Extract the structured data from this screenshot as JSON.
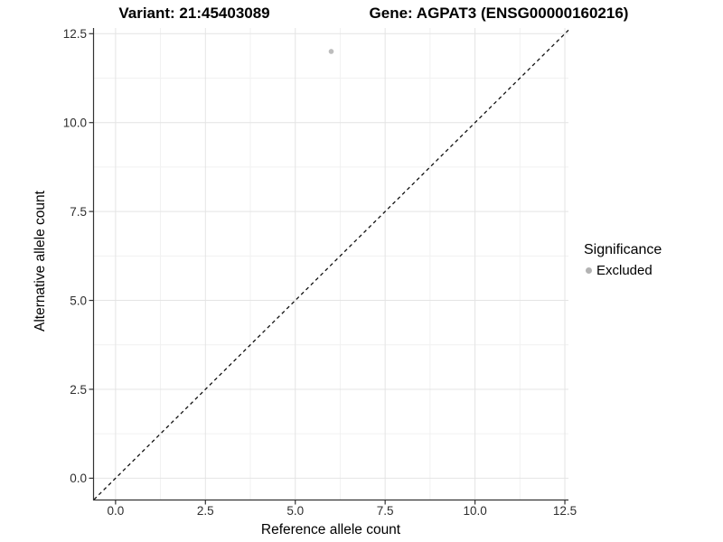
{
  "chart_data": {
    "type": "scatter",
    "titles": [
      {
        "id": "variant",
        "text": "Variant: 21:45403089"
      },
      {
        "id": "gene",
        "text": "Gene: AGPAT3 (ENSG00000160216)"
      }
    ],
    "xlabel": "Reference allele count",
    "ylabel": "Alternative allele count",
    "xlim": [
      -0.6,
      12.6
    ],
    "ylim": [
      -0.6,
      12.66
    ],
    "x_ticks": {
      "values": [
        0,
        2.5,
        5,
        7.5,
        10,
        12.5
      ],
      "labels": [
        "0.0",
        "2.5",
        "5.0",
        "7.5",
        "10.0",
        "12.5"
      ]
    },
    "y_ticks": {
      "values": [
        0,
        2.5,
        5,
        7.5,
        10,
        12.5
      ],
      "labels": [
        "0.0",
        "2.5",
        "5.0",
        "7.5",
        "10.0",
        "12.5"
      ]
    },
    "grid": {
      "show_minor": true,
      "major_color": "#e4e4e4",
      "minor_color": "#f1f1f1"
    },
    "reference_line": {
      "type": "identity",
      "slope": 1,
      "intercept": 0,
      "style": "dashed",
      "dash": [
        4,
        3.5
      ],
      "color": "#111111"
    },
    "series": [
      {
        "name": "Excluded",
        "color": "#bdbdbd",
        "point_radius": 2.8,
        "points": [
          {
            "x": 6,
            "y": 12
          }
        ]
      }
    ],
    "legend": {
      "title": "Significance",
      "position": "right",
      "items": [
        {
          "label": "Excluded",
          "color": "#b3b3b3"
        }
      ]
    }
  },
  "colors": {
    "background": "#ffffff",
    "axis": "#333333",
    "tick_label": "#2e2e2e"
  }
}
